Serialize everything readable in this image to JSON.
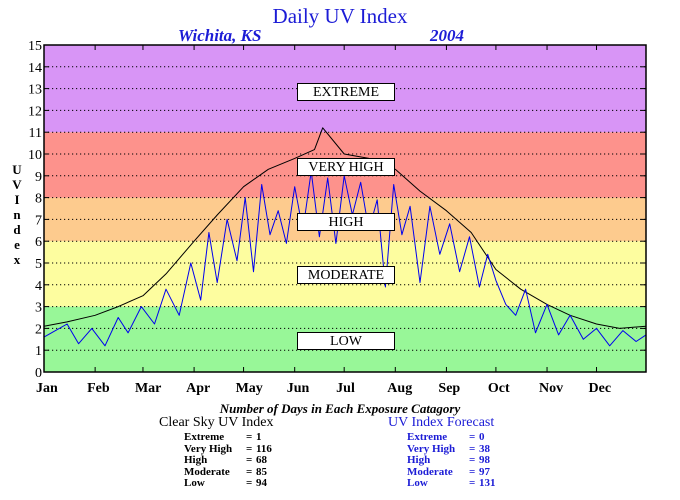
{
  "title": "Daily UV Index",
  "location": "Wichita, KS",
  "year": "2004",
  "y_axis_letters": [
    "U",
    "V",
    "",
    "I",
    "n",
    "d",
    "e",
    "x"
  ],
  "colors": {
    "title": "#1c1cd6",
    "extreme": "#d895f6",
    "very_high": "#fd928c",
    "high": "#fdcb8e",
    "moderate": "#fdfd9f",
    "low": "#98f798",
    "clear_sky_line": "#000000",
    "forecast_line": "#0000ee"
  },
  "zones": [
    {
      "key": "low",
      "label": "LOW",
      "from": 0,
      "to": 3,
      "color": "#98f798"
    },
    {
      "key": "moderate",
      "label": "MODERATE",
      "from": 3,
      "to": 6,
      "color": "#fdfd9f"
    },
    {
      "key": "high",
      "label": "HIGH",
      "from": 6,
      "to": 8,
      "color": "#fdcb8e"
    },
    {
      "key": "very_high",
      "label": "VERY HIGH",
      "from": 8,
      "to": 11,
      "color": "#fd928c"
    },
    {
      "key": "extreme",
      "label": "EXTREME",
      "from": 11,
      "to": 15,
      "color": "#d895f6"
    }
  ],
  "stats": {
    "heading": "Number of Days in Each Exposure Catagory",
    "clear_sky": {
      "title": "Clear Sky UV Index",
      "rows": [
        {
          "label": "Extreme",
          "value": "1"
        },
        {
          "label": "Very High",
          "value": "116"
        },
        {
          "label": "High",
          "value": "68"
        },
        {
          "label": "Moderate",
          "value": "85"
        },
        {
          "label": "Low",
          "value": "94"
        }
      ]
    },
    "forecast": {
      "title": "UV Index Forecast",
      "rows": [
        {
          "label": "Extreme",
          "value": "0"
        },
        {
          "label": "Very High",
          "value": "38"
        },
        {
          "label": "High",
          "value": "98"
        },
        {
          "label": "Moderate",
          "value": "97"
        },
        {
          "label": "Low",
          "value": "131"
        }
      ]
    }
  },
  "chart_data": {
    "type": "line",
    "title": "Daily UV Index",
    "subtitle": "Wichita, KS 2004",
    "ylabel": "UV Index",
    "xlabel": "",
    "ylim": [
      0,
      15
    ],
    "yticks": [
      0,
      1,
      2,
      3,
      4,
      5,
      6,
      7,
      8,
      9,
      10,
      11,
      12,
      13,
      14,
      15
    ],
    "xlim": [
      1,
      366
    ],
    "x_ticks": [
      {
        "label": "Jan",
        "day": 1
      },
      {
        "label": "Feb",
        "day": 32
      },
      {
        "label": "Mar",
        "day": 61
      },
      {
        "label": "Apr",
        "day": 92
      },
      {
        "label": "May",
        "day": 122
      },
      {
        "label": "Jun",
        "day": 153
      },
      {
        "label": "Jul",
        "day": 183
      },
      {
        "label": "Aug",
        "day": 214
      },
      {
        "label": "Sep",
        "day": 245
      },
      {
        "label": "Oct",
        "day": 275
      },
      {
        "label": "Nov",
        "day": 306
      },
      {
        "label": "Dec",
        "day": 336
      }
    ],
    "grid": true,
    "series": [
      {
        "name": "Clear Sky UV Index",
        "color": "#000000",
        "x": [
          1,
          15,
          32,
          46,
          61,
          75,
          92,
          106,
          122,
          137,
          153,
          165,
          170,
          183,
          198,
          214,
          229,
          245,
          260,
          275,
          290,
          306,
          320,
          336,
          350,
          366
        ],
        "y": [
          2.1,
          2.3,
          2.6,
          3.0,
          3.5,
          4.5,
          6.0,
          7.2,
          8.5,
          9.3,
          9.8,
          10.2,
          11.2,
          10.0,
          9.8,
          9.3,
          8.3,
          7.4,
          6.4,
          4.7,
          3.8,
          3.1,
          2.6,
          2.2,
          2.0,
          2.1
        ]
      },
      {
        "name": "UV Index Forecast",
        "color": "#0000ee",
        "x": [
          1,
          8,
          15,
          22,
          30,
          38,
          46,
          52,
          60,
          68,
          75,
          83,
          90,
          96,
          101,
          106,
          112,
          118,
          123,
          128,
          133,
          138,
          143,
          148,
          153,
          158,
          163,
          168,
          173,
          178,
          183,
          188,
          193,
          198,
          203,
          208,
          213,
          218,
          223,
          229,
          235,
          241,
          247,
          253,
          259,
          265,
          270,
          275,
          281,
          287,
          293,
          299,
          306,
          313,
          320,
          328,
          336,
          344,
          352,
          360,
          366
        ],
        "y": [
          1.6,
          1.9,
          2.2,
          1.3,
          2.0,
          1.2,
          2.5,
          1.8,
          3.0,
          2.2,
          3.8,
          2.6,
          5.0,
          3.3,
          6.4,
          4.1,
          7.0,
          5.1,
          8.0,
          4.6,
          8.6,
          6.3,
          7.4,
          5.9,
          8.5,
          6.5,
          9.2,
          6.2,
          8.9,
          5.9,
          9.0,
          7.2,
          8.7,
          6.5,
          7.9,
          3.9,
          8.6,
          6.3,
          7.6,
          4.1,
          7.6,
          5.4,
          6.8,
          4.6,
          6.2,
          3.9,
          5.4,
          4.2,
          3.1,
          2.6,
          3.8,
          1.8,
          3.1,
          1.7,
          2.6,
          1.5,
          2.0,
          1.2,
          1.9,
          1.4,
          1.7
        ]
      }
    ]
  }
}
